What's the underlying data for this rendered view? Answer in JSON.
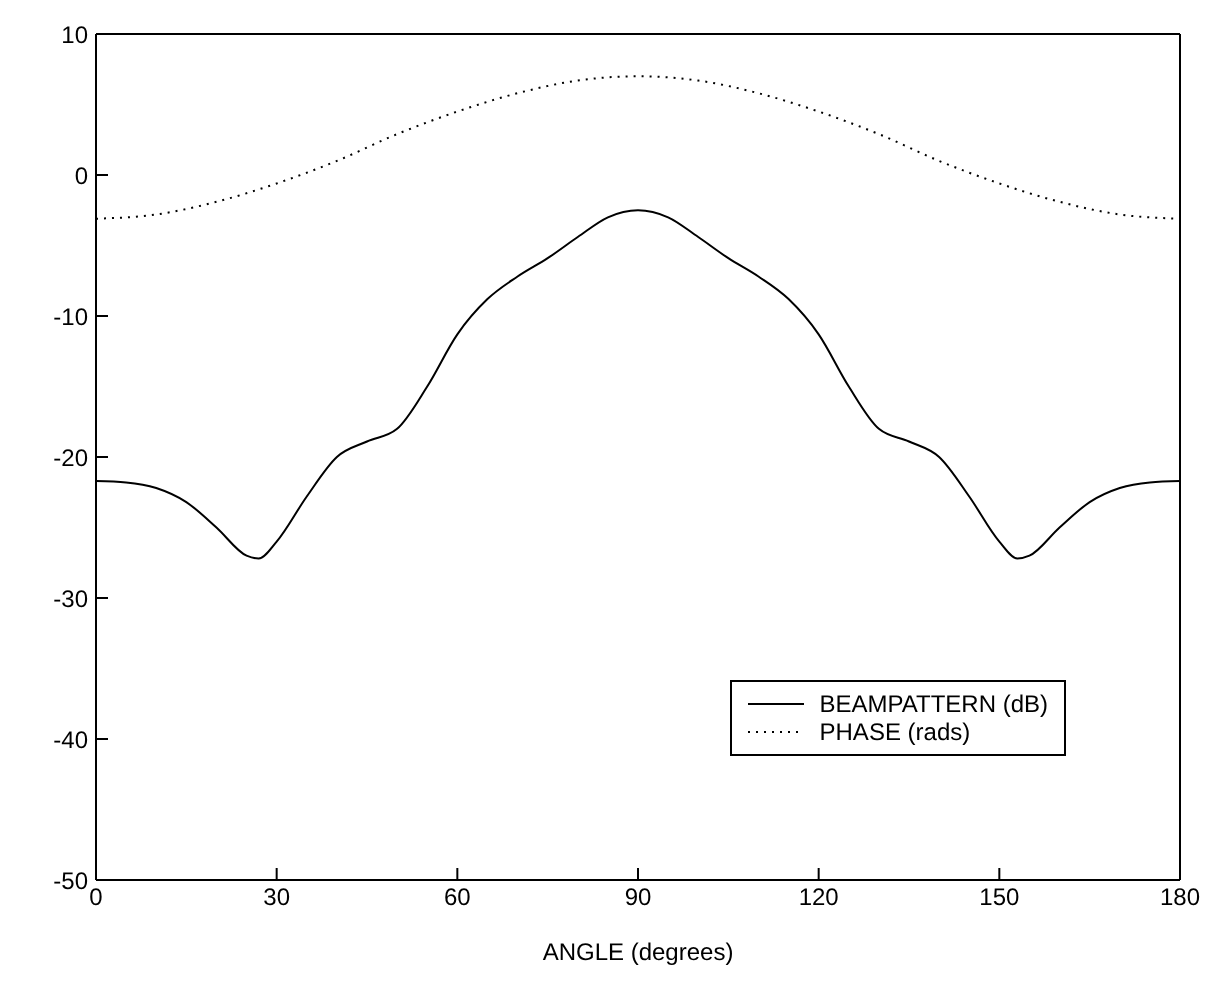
{
  "chart_data": {
    "type": "line",
    "xlabel": "ANGLE (degrees)",
    "xlim": [
      0,
      180
    ],
    "xticks": [
      0,
      30,
      60,
      90,
      120,
      150,
      180
    ],
    "ylim": [
      -50,
      10
    ],
    "yticks": [
      -50,
      -40,
      -30,
      -20,
      -10,
      0,
      10
    ],
    "legend": "bottom right",
    "marker": "none",
    "series": [
      {
        "name": "BEAMPATTERN (dB)",
        "color": "#000000",
        "line_style": "solid",
        "x": [
          0,
          5,
          10,
          15,
          20,
          25,
          27,
          30,
          35,
          40,
          45,
          50,
          55,
          60,
          65,
          70,
          75,
          80,
          85,
          90,
          95,
          100,
          105,
          110,
          115,
          120,
          125,
          130,
          135,
          140,
          145,
          150,
          153,
          155,
          160,
          165,
          170,
          175,
          180
        ],
        "values": [
          -21.7,
          -21.8,
          -22.2,
          -23.2,
          -25.0,
          -27.0,
          -27.2,
          -26.0,
          -22.8,
          -20.0,
          -18.9,
          -18.0,
          -15.0,
          -11.3,
          -8.8,
          -7.2,
          -5.9,
          -4.4,
          -3.0,
          -2.5,
          -3.0,
          -4.4,
          -5.9,
          -7.2,
          -8.8,
          -11.3,
          -15.0,
          -18.0,
          -18.9,
          -20.0,
          -22.8,
          -26.0,
          -27.2,
          -27.0,
          -25.0,
          -23.2,
          -22.2,
          -21.8,
          -21.7
        ]
      },
      {
        "name": "PHASE (rads)",
        "color": "#000000",
        "line_style": "dotted",
        "x": [
          0,
          10,
          20,
          30,
          40,
          50,
          60,
          70,
          80,
          90,
          100,
          110,
          120,
          130,
          140,
          150,
          160,
          170,
          180
        ],
        "values": [
          -3.1,
          -2.8,
          -1.9,
          -0.6,
          1.0,
          2.9,
          4.5,
          5.8,
          6.7,
          7.0,
          6.7,
          5.8,
          4.5,
          2.9,
          1.0,
          -0.6,
          -1.9,
          -2.8,
          -3.1
        ]
      }
    ]
  }
}
